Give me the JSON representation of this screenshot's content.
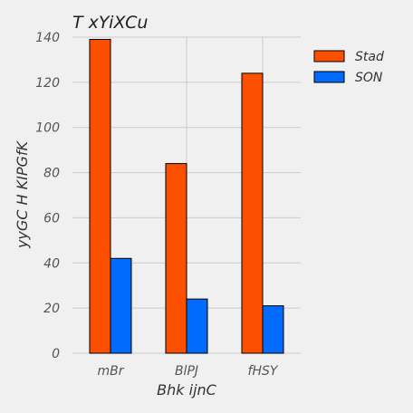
{
  "chart_data": {
    "type": "bar",
    "title": "T  xYiXCu",
    "xlabel": "Bhk ijnC",
    "ylabel": "yyGC H  KIPGfK",
    "categories": [
      "mBr",
      "BlPJ",
      "fHSY"
    ],
    "series": [
      {
        "name": "Stad",
        "values": [
          139,
          84,
          124
        ],
        "color": "#fc4f00"
      },
      {
        "name": "SON",
        "values": [
          42,
          24,
          21
        ],
        "color": "#006bfc"
      }
    ],
    "ylim": [
      0,
      140
    ],
    "yticks": [
      0,
      20,
      40,
      60,
      80,
      100,
      120,
      140
    ],
    "grid": true,
    "legend_position": "top-right"
  }
}
